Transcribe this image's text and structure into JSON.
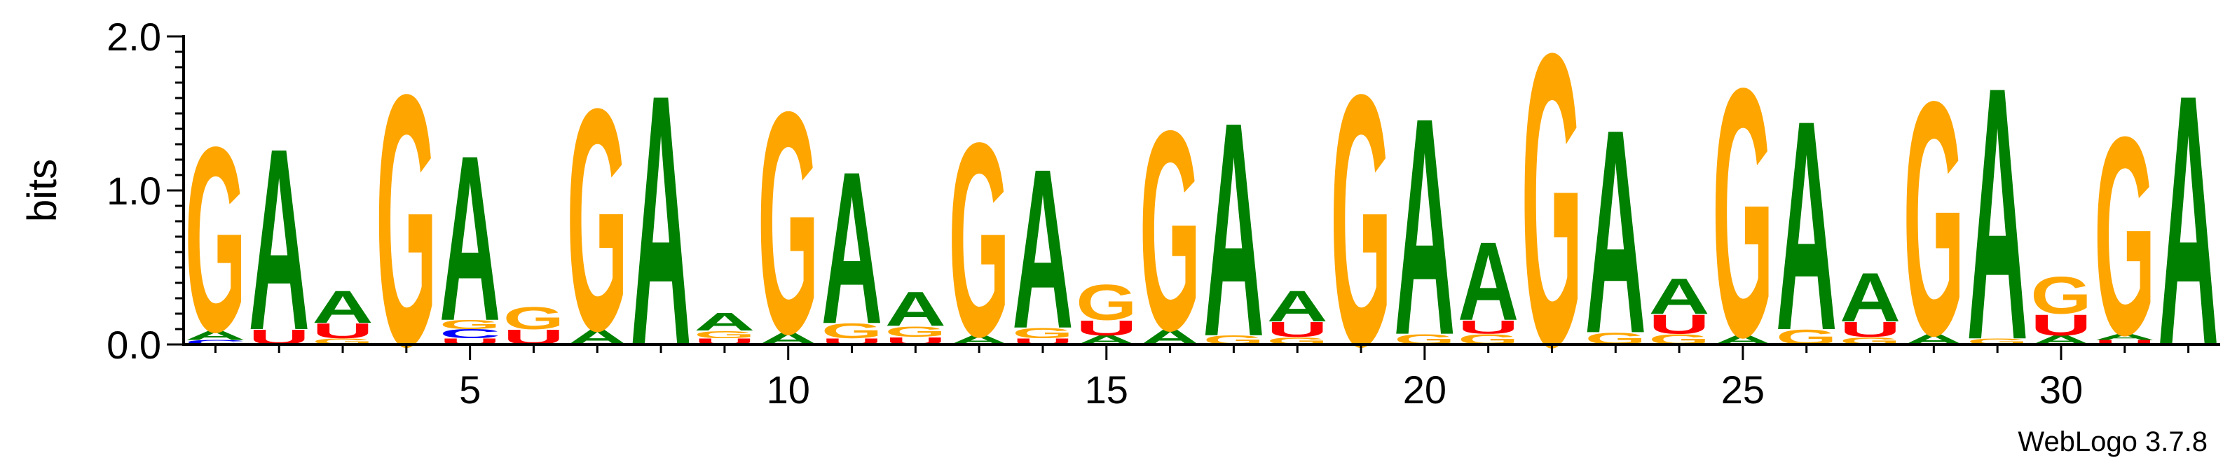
{
  "chart_data": {
    "type": "sequence-logo",
    "ylabel": "bits",
    "ylim": [
      0,
      2.0
    ],
    "y_ticks": [
      "0.0",
      "1.0",
      "2.0"
    ],
    "x_ticks": [
      "5",
      "10",
      "15",
      "20",
      "25",
      "30"
    ],
    "x_tick_values": [
      5,
      10,
      15,
      20,
      25,
      30
    ],
    "positions": 32,
    "watermark": "WebLogo 3.7.8",
    "colors": {
      "G": "#FFA500",
      "A": "#008000",
      "U": "#FF0000",
      "C": "#0000FF"
    },
    "stacks": [
      [
        {
          "l": "C",
          "h": 0.03
        },
        {
          "l": "A",
          "h": 0.06
        },
        {
          "l": "G",
          "h": 1.25
        }
      ],
      [
        {
          "l": "U",
          "h": 0.1
        },
        {
          "l": "A",
          "h": 1.23
        }
      ],
      [
        {
          "l": "G",
          "h": 0.04
        },
        {
          "l": "U",
          "h": 0.1
        },
        {
          "l": "A",
          "h": 0.22
        }
      ],
      [
        {
          "l": "G",
          "h": 1.7
        }
      ],
      [
        {
          "l": "U",
          "h": 0.04
        },
        {
          "l": "C",
          "h": 0.06
        },
        {
          "l": "G",
          "h": 0.06
        },
        {
          "l": "A",
          "h": 1.12
        }
      ],
      [
        {
          "l": "U",
          "h": 0.1
        },
        {
          "l": "G",
          "h": 0.15
        }
      ],
      [
        {
          "l": "A",
          "h": 0.1
        },
        {
          "l": "G",
          "h": 1.5
        }
      ],
      [
        {
          "l": "A",
          "h": 1.7
        }
      ],
      [
        {
          "l": "U",
          "h": 0.04
        },
        {
          "l": "G",
          "h": 0.05
        },
        {
          "l": "A",
          "h": 0.12
        }
      ],
      [
        {
          "l": "A",
          "h": 0.08
        },
        {
          "l": "G",
          "h": 1.5
        }
      ],
      [
        {
          "l": "U",
          "h": 0.04
        },
        {
          "l": "G",
          "h": 0.1
        },
        {
          "l": "A",
          "h": 1.03
        }
      ],
      [
        {
          "l": "U",
          "h": 0.05
        },
        {
          "l": "G",
          "h": 0.07
        },
        {
          "l": "A",
          "h": 0.23
        }
      ],
      [
        {
          "l": "A",
          "h": 0.06
        },
        {
          "l": "G",
          "h": 1.31
        }
      ],
      [
        {
          "l": "U",
          "h": 0.04
        },
        {
          "l": "G",
          "h": 0.07
        },
        {
          "l": "A",
          "h": 1.08
        }
      ],
      [
        {
          "l": "A",
          "h": 0.06
        },
        {
          "l": "U",
          "h": 0.1
        },
        {
          "l": "G",
          "h": 0.24
        }
      ],
      [
        {
          "l": "A",
          "h": 0.1
        },
        {
          "l": "G",
          "h": 1.35
        }
      ],
      [
        {
          "l": "G",
          "h": 0.06
        },
        {
          "l": "A",
          "h": 1.45
        }
      ],
      [
        {
          "l": "G",
          "h": 0.05
        },
        {
          "l": "U",
          "h": 0.1
        },
        {
          "l": "A",
          "h": 0.21
        }
      ],
      [
        {
          "l": "G",
          "h": 1.7
        }
      ],
      [
        {
          "l": "G",
          "h": 0.07
        },
        {
          "l": "A",
          "h": 1.47
        }
      ],
      [
        {
          "l": "G",
          "h": 0.07
        },
        {
          "l": "U",
          "h": 0.09
        },
        {
          "l": "A",
          "h": 0.53
        }
      ],
      [
        {
          "l": "G",
          "h": 1.98
        }
      ],
      [
        {
          "l": "G",
          "h": 0.08
        },
        {
          "l": "A",
          "h": 1.38
        }
      ],
      [
        {
          "l": "G",
          "h": 0.07
        },
        {
          "l": "U",
          "h": 0.13
        },
        {
          "l": "A",
          "h": 0.24
        }
      ],
      [
        {
          "l": "A",
          "h": 0.06
        },
        {
          "l": "G",
          "h": 1.68
        }
      ],
      [
        {
          "l": "G",
          "h": 0.1
        },
        {
          "l": "A",
          "h": 1.42
        }
      ],
      [
        {
          "l": "G",
          "h": 0.05
        },
        {
          "l": "U",
          "h": 0.1
        },
        {
          "l": "A",
          "h": 0.33
        }
      ],
      [
        {
          "l": "A",
          "h": 0.07
        },
        {
          "l": "G",
          "h": 1.58
        }
      ],
      [
        {
          "l": "G",
          "h": 0.04
        },
        {
          "l": "A",
          "h": 1.71
        }
      ],
      [
        {
          "l": "A",
          "h": 0.06
        },
        {
          "l": "U",
          "h": 0.14
        },
        {
          "l": "G",
          "h": 0.25
        }
      ],
      [
        {
          "l": "U",
          "h": 0.03
        },
        {
          "l": "A",
          "h": 0.04
        },
        {
          "l": "G",
          "h": 1.34
        }
      ],
      [
        {
          "l": "A",
          "h": 1.7
        }
      ]
    ]
  }
}
